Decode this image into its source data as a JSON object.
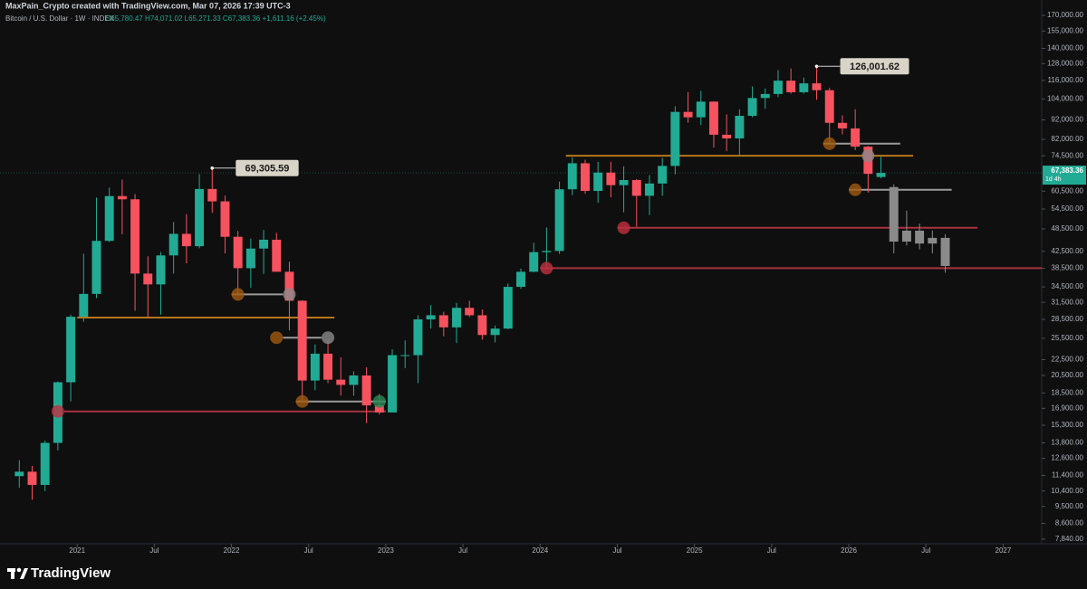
{
  "chart_data": {
    "type": "candlestick",
    "attribution": "MaxPain_Crypto created with TradingView.com, Mar 07, 2026 17:39 UTC-3",
    "symbol": "Bitcoin / U.S. Dollar · 1W · INDEX",
    "ohlc": "O65,780.47 H74,071.02 L65,271.33 C67,383.36 +1,611.16 (+2.45%)",
    "logo": "TradingView",
    "log_scale": true,
    "up_color": "#22ab94",
    "down_color": "#f7525f",
    "x": [
      "2020-08",
      "2020-09",
      "2020-10",
      "2020-11",
      "2020-12",
      "2021-01",
      "2021-02",
      "2021-03",
      "2021-04",
      "2021-05",
      "2021-06",
      "2021-07",
      "2021-08",
      "2021-09",
      "2021-10",
      "2021-11",
      "2021-12",
      "2022-01",
      "2022-02",
      "2022-03",
      "2022-04",
      "2022-05",
      "2022-06",
      "2022-07",
      "2022-08",
      "2022-09",
      "2022-10",
      "2022-11",
      "2022-12",
      "2023-01",
      "2023-02",
      "2023-03",
      "2023-04",
      "2023-05",
      "2023-06",
      "2023-07",
      "2023-08",
      "2023-09",
      "2023-10",
      "2023-11",
      "2023-12",
      "2024-01",
      "2024-02",
      "2024-03",
      "2024-04",
      "2024-05",
      "2024-06",
      "2024-07",
      "2024-08",
      "2024-09",
      "2024-10",
      "2024-11",
      "2024-12",
      "2025-01",
      "2025-02",
      "2025-03",
      "2025-04",
      "2025-05",
      "2025-06",
      "2025-07",
      "2025-08",
      "2025-09",
      "2025-10",
      "2025-11",
      "2025-12",
      "2026-01",
      "2026-02",
      "2026-03"
    ],
    "open": [
      11350,
      11650,
      10780,
      13800,
      19700,
      28950,
      33100,
      45200,
      58800,
      57700,
      37300,
      35000,
      41500,
      47100,
      43800,
      61300,
      57000,
      46300,
      38500,
      43200,
      45500,
      37700,
      31800,
      19900,
      23300,
      20000,
      19400,
      20500,
      17200,
      16500,
      23100,
      23100,
      28500,
      29200,
      27200,
      30500,
      29200,
      26000,
      27000,
      34500,
      37700,
      42300,
      42600,
      61200,
      71300,
      60600,
      67500,
      62700,
      64600,
      58900,
      63300,
      70200,
      96400,
      93400,
      102400,
      84300,
      82500,
      94200,
      104600,
      107100,
      115800,
      108200,
      114000,
      109500,
      90400,
      87500,
      78600,
      65780.47
    ],
    "high": [
      12470,
      12050,
      14000,
      19800,
      29300,
      41900,
      58300,
      61800,
      64800,
      59500,
      41300,
      42300,
      50500,
      52900,
      66900,
      69305.59,
      59000,
      47900,
      45800,
      48200,
      47400,
      40000,
      31900,
      24600,
      25200,
      22800,
      21000,
      21500,
      18400,
      23900,
      25200,
      29200,
      31000,
      29800,
      31400,
      31800,
      30200,
      27500,
      35200,
      38400,
      44700,
      48900,
      64000,
      73800,
      72800,
      71900,
      71900,
      70000,
      65000,
      66500,
      73600,
      99600,
      108300,
      109100,
      102500,
      95000,
      97900,
      111900,
      110600,
      123200,
      124400,
      117900,
      126001.62,
      111000,
      94500,
      97900,
      79000,
      74071.02
    ],
    "low": [
      10600,
      9880,
      10400,
      13200,
      17600,
      28100,
      32300,
      44900,
      47000,
      30000,
      28800,
      29300,
      37300,
      39600,
      43300,
      53300,
      42000,
      33000,
      34300,
      37200,
      37700,
      26700,
      17600,
      18800,
      19600,
      18200,
      18200,
      15500,
      16300,
      16500,
      21400,
      19600,
      27000,
      25800,
      24800,
      28900,
      25300,
      24900,
      26900,
      34100,
      37600,
      38500,
      41900,
      59100,
      59600,
      56500,
      58400,
      53500,
      49100,
      52600,
      58900,
      66800,
      90500,
      89200,
      78200,
      76600,
      74400,
      93400,
      98200,
      105100,
      107300,
      107300,
      103500,
      80500,
      84500,
      77000,
      60000,
      65271.33
    ],
    "close": [
      11650,
      10780,
      13800,
      19700,
      28950,
      33100,
      45200,
      58800,
      57700,
      37300,
      35000,
      41500,
      47100,
      43800,
      61300,
      57000,
      46300,
      38500,
      43200,
      45500,
      37700,
      31800,
      19900,
      23300,
      20000,
      19400,
      20500,
      17200,
      16500,
      23100,
      23100,
      28500,
      29200,
      27200,
      30500,
      29200,
      26000,
      27000,
      34500,
      37700,
      42300,
      42600,
      61200,
      71300,
      60600,
      67500,
      62700,
      64600,
      58900,
      63300,
      70200,
      96400,
      93400,
      102400,
      84300,
      82500,
      94200,
      104600,
      107100,
      115800,
      108200,
      114000,
      109500,
      90400,
      87500,
      78600,
      67000,
      67383.36
    ],
    "projection": {
      "color": "#8a8a8a",
      "x": [
        "2026-04",
        "2026-05",
        "2026-06",
        "2026-07",
        "2026-08"
      ],
      "open": [
        62000,
        45000,
        48000,
        44500,
        46000
      ],
      "high": [
        63000,
        54000,
        50000,
        48000,
        47000
      ],
      "low": [
        42000,
        44000,
        43000,
        42000,
        37500
      ],
      "close": [
        45000,
        48000,
        44500,
        46000,
        39000
      ]
    },
    "xlim": [
      "2020-07",
      "2027-04"
    ],
    "xticks": [
      {
        "value": "2021-01",
        "label": "2021"
      },
      {
        "value": "2021-07",
        "label": "Jul"
      },
      {
        "value": "2022-01",
        "label": "2022"
      },
      {
        "value": "2022-07",
        "label": "Jul"
      },
      {
        "value": "2023-01",
        "label": "2023"
      },
      {
        "value": "2023-07",
        "label": "Jul"
      },
      {
        "value": "2024-01",
        "label": "2024"
      },
      {
        "value": "2024-07",
        "label": "Jul"
      },
      {
        "value": "2025-01",
        "label": "2025"
      },
      {
        "value": "2025-07",
        "label": "Jul"
      },
      {
        "value": "2026-01",
        "label": "2026"
      },
      {
        "value": "2026-07",
        "label": "Jul"
      },
      {
        "value": "2027-01",
        "label": "2027"
      }
    ],
    "ylim": [
      7630,
      186000
    ],
    "yticks": [
      {
        "value": 170000,
        "label": "170,000.00"
      },
      {
        "value": 155000,
        "label": "155,000.00"
      },
      {
        "value": 140000,
        "label": "140,000.00"
      },
      {
        "value": 128000,
        "label": "128,000.00"
      },
      {
        "value": 116000,
        "label": "116,000.00"
      },
      {
        "value": 104000,
        "label": "104,000.00"
      },
      {
        "value": 92000,
        "label": "92,000.00"
      },
      {
        "value": 82000,
        "label": "82,000.00"
      },
      {
        "value": 74500,
        "label": "74,500.00"
      },
      {
        "value": 60500,
        "label": "60,500.00"
      },
      {
        "value": 54500,
        "label": "54,500.00"
      },
      {
        "value": 48500,
        "label": "48,500.00"
      },
      {
        "value": 42500,
        "label": "42,500.00"
      },
      {
        "value": 38500,
        "label": "38,500.00"
      },
      {
        "value": 34500,
        "label": "34,500.00"
      },
      {
        "value": 31500,
        "label": "31,500.00"
      },
      {
        "value": 28500,
        "label": "28,500.00"
      },
      {
        "value": 25500,
        "label": "25,500.00"
      },
      {
        "value": 22500,
        "label": "22,500.00"
      },
      {
        "value": 20500,
        "label": "20,500.00"
      },
      {
        "value": 18500,
        "label": "18,500.00"
      },
      {
        "value": 16900,
        "label": "16,900.00"
      },
      {
        "value": 15300,
        "label": "15,300.00"
      },
      {
        "value": 13800,
        "label": "13,800.00"
      },
      {
        "value": 12600,
        "label": "12,600.00"
      },
      {
        "value": 11400,
        "label": "11,400.00"
      },
      {
        "value": 10400,
        "label": "10,400.00"
      },
      {
        "value": 9500,
        "label": "9,500.00"
      },
      {
        "value": 8600,
        "label": "8,600.00"
      },
      {
        "value": 7840,
        "label": "7,840.00"
      }
    ],
    "last_price": {
      "value": 67383.36,
      "label": "67,383.36",
      "countdown": "1d 4h",
      "color": "#22ab94"
    },
    "annotations": [
      {
        "x": "2021-11",
        "value": 69305.59,
        "label": "69,305.59"
      },
      {
        "x": "2025-10",
        "value": 126001.62,
        "label": "126,001.62"
      }
    ],
    "levels": [
      {
        "value": 28800,
        "from": "2021-01",
        "to": "2022-09",
        "color": "#b8761b"
      },
      {
        "value": 16600,
        "from": "2020-12",
        "to": "2023-01",
        "color": "#a8323f"
      },
      {
        "value": 33000,
        "from": "2022-01",
        "to": "2022-05",
        "color": "#9a9a9a"
      },
      {
        "value": 25600,
        "from": "2022-05",
        "to": "2022-08",
        "color": "#9a9a9a"
      },
      {
        "value": 17600,
        "from": "2022-06",
        "to": "2023-01",
        "color": "#9a9a9a"
      },
      {
        "value": 74500,
        "from": "2024-03",
        "to": "2026-06",
        "color": "#b8761b"
      },
      {
        "value": 48800,
        "from": "2024-07",
        "to": "2026-11",
        "color": "#a8323f"
      },
      {
        "value": 38500,
        "from": "2024-01",
        "to": "2027-04",
        "color": "#a8323f"
      },
      {
        "value": 80000,
        "from": "2025-11",
        "to": "2026-05",
        "color": "#9a9a9a"
      },
      {
        "value": 61000,
        "from": "2026-01",
        "to": "2026-09",
        "color": "#9a9a9a"
      }
    ],
    "markers": [
      {
        "x": "2020-11",
        "value": 16600,
        "color": "#c0303f"
      },
      {
        "x": "2022-01",
        "value": 33000,
        "color": "#a05a10"
      },
      {
        "x": "2022-05",
        "value": 33000,
        "color": "#8a8a8a"
      },
      {
        "x": "2022-04",
        "value": 25600,
        "color": "#a05a10"
      },
      {
        "x": "2022-08",
        "value": 25600,
        "color": "#8a8a8a"
      },
      {
        "x": "2022-06",
        "value": 17600,
        "color": "#a05a10"
      },
      {
        "x": "2022-12",
        "value": 17600,
        "color": "#2a8a55"
      },
      {
        "x": "2024-01",
        "value": 38500,
        "color": "#c0303f"
      },
      {
        "x": "2024-07",
        "value": 48800,
        "color": "#c0303f"
      },
      {
        "x": "2025-11",
        "value": 80000,
        "color": "#a05a10"
      },
      {
        "x": "2026-02",
        "value": 74500,
        "color": "#8a8a8a"
      },
      {
        "x": "2026-01",
        "value": 61000,
        "color": "#a05a10"
      }
    ]
  }
}
